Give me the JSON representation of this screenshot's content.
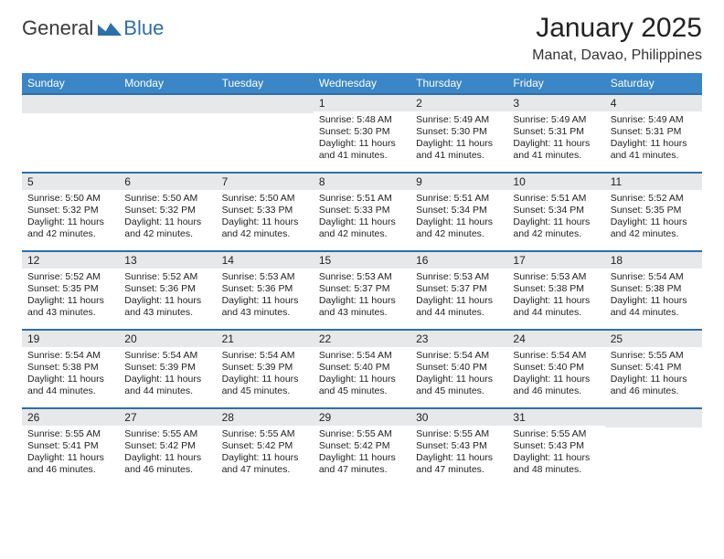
{
  "logo": {
    "text1": "General",
    "text2": "Blue",
    "mark_color": "#2f6fa8"
  },
  "title": "January 2025",
  "subtitle": "Manat, Davao, Philippines",
  "colors": {
    "header_bg": "#3b86c6",
    "band": "#e7e8ea",
    "rule": "#2f6fa8",
    "page_bg": "#ffffff",
    "text": "#1b1b1b"
  },
  "day_headers": [
    "Sunday",
    "Monday",
    "Tuesday",
    "Wednesday",
    "Thursday",
    "Friday",
    "Saturday"
  ],
  "label_sunrise": "Sunrise: ",
  "label_sunset": "Sunset: ",
  "label_daylight": "Daylight: ",
  "weeks": [
    [
      null,
      null,
      null,
      {
        "n": "1",
        "sr": "5:48 AM",
        "ss": "5:30 PM",
        "dl": "11 hours and 41 minutes."
      },
      {
        "n": "2",
        "sr": "5:49 AM",
        "ss": "5:30 PM",
        "dl": "11 hours and 41 minutes."
      },
      {
        "n": "3",
        "sr": "5:49 AM",
        "ss": "5:31 PM",
        "dl": "11 hours and 41 minutes."
      },
      {
        "n": "4",
        "sr": "5:49 AM",
        "ss": "5:31 PM",
        "dl": "11 hours and 41 minutes."
      }
    ],
    [
      {
        "n": "5",
        "sr": "5:50 AM",
        "ss": "5:32 PM",
        "dl": "11 hours and 42 minutes."
      },
      {
        "n": "6",
        "sr": "5:50 AM",
        "ss": "5:32 PM",
        "dl": "11 hours and 42 minutes."
      },
      {
        "n": "7",
        "sr": "5:50 AM",
        "ss": "5:33 PM",
        "dl": "11 hours and 42 minutes."
      },
      {
        "n": "8",
        "sr": "5:51 AM",
        "ss": "5:33 PM",
        "dl": "11 hours and 42 minutes."
      },
      {
        "n": "9",
        "sr": "5:51 AM",
        "ss": "5:34 PM",
        "dl": "11 hours and 42 minutes."
      },
      {
        "n": "10",
        "sr": "5:51 AM",
        "ss": "5:34 PM",
        "dl": "11 hours and 42 minutes."
      },
      {
        "n": "11",
        "sr": "5:52 AM",
        "ss": "5:35 PM",
        "dl": "11 hours and 42 minutes."
      }
    ],
    [
      {
        "n": "12",
        "sr": "5:52 AM",
        "ss": "5:35 PM",
        "dl": "11 hours and 43 minutes."
      },
      {
        "n": "13",
        "sr": "5:52 AM",
        "ss": "5:36 PM",
        "dl": "11 hours and 43 minutes."
      },
      {
        "n": "14",
        "sr": "5:53 AM",
        "ss": "5:36 PM",
        "dl": "11 hours and 43 minutes."
      },
      {
        "n": "15",
        "sr": "5:53 AM",
        "ss": "5:37 PM",
        "dl": "11 hours and 43 minutes."
      },
      {
        "n": "16",
        "sr": "5:53 AM",
        "ss": "5:37 PM",
        "dl": "11 hours and 44 minutes."
      },
      {
        "n": "17",
        "sr": "5:53 AM",
        "ss": "5:38 PM",
        "dl": "11 hours and 44 minutes."
      },
      {
        "n": "18",
        "sr": "5:54 AM",
        "ss": "5:38 PM",
        "dl": "11 hours and 44 minutes."
      }
    ],
    [
      {
        "n": "19",
        "sr": "5:54 AM",
        "ss": "5:38 PM",
        "dl": "11 hours and 44 minutes."
      },
      {
        "n": "20",
        "sr": "5:54 AM",
        "ss": "5:39 PM",
        "dl": "11 hours and 44 minutes."
      },
      {
        "n": "21",
        "sr": "5:54 AM",
        "ss": "5:39 PM",
        "dl": "11 hours and 45 minutes."
      },
      {
        "n": "22",
        "sr": "5:54 AM",
        "ss": "5:40 PM",
        "dl": "11 hours and 45 minutes."
      },
      {
        "n": "23",
        "sr": "5:54 AM",
        "ss": "5:40 PM",
        "dl": "11 hours and 45 minutes."
      },
      {
        "n": "24",
        "sr": "5:54 AM",
        "ss": "5:40 PM",
        "dl": "11 hours and 46 minutes."
      },
      {
        "n": "25",
        "sr": "5:55 AM",
        "ss": "5:41 PM",
        "dl": "11 hours and 46 minutes."
      }
    ],
    [
      {
        "n": "26",
        "sr": "5:55 AM",
        "ss": "5:41 PM",
        "dl": "11 hours and 46 minutes."
      },
      {
        "n": "27",
        "sr": "5:55 AM",
        "ss": "5:42 PM",
        "dl": "11 hours and 46 minutes."
      },
      {
        "n": "28",
        "sr": "5:55 AM",
        "ss": "5:42 PM",
        "dl": "11 hours and 47 minutes."
      },
      {
        "n": "29",
        "sr": "5:55 AM",
        "ss": "5:42 PM",
        "dl": "11 hours and 47 minutes."
      },
      {
        "n": "30",
        "sr": "5:55 AM",
        "ss": "5:43 PM",
        "dl": "11 hours and 47 minutes."
      },
      {
        "n": "31",
        "sr": "5:55 AM",
        "ss": "5:43 PM",
        "dl": "11 hours and 48 minutes."
      },
      null
    ]
  ]
}
